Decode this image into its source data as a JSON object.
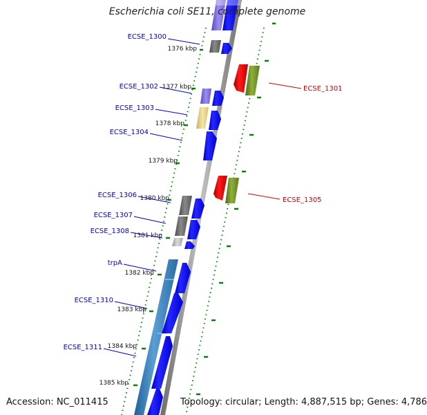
{
  "title": "Escherichia coli SE11, complete genome",
  "footer": {
    "accession": "Accession: NC_011415",
    "summary": "Topology: circular; Length: 4,887,515 bp; Genes: 4,786"
  },
  "colors": {
    "forward_gene": "#0000f0",
    "reverse_gene": "#e00000",
    "reverse_gene_secondary": "#6e8e22",
    "gene_dark": "#676767",
    "gene_light": "#a9a9a9",
    "operon": "#3a7fb9",
    "ticks": "#0b7d0b",
    "axis": "#8a8a8a",
    "forward_label": "#0000c8",
    "reverse_label": "#d00000"
  },
  "kbp_ticks": [
    "1376 kbp",
    "1377 kbp",
    "1378 kbp",
    "1379 kbp",
    "1380 kbp",
    "1381 kbp",
    "1382 kbp",
    "1383 kbp",
    "1384 kbp",
    "1385 kbp"
  ],
  "forward_genes": [
    "ECSE_1300",
    "ECSE_1302",
    "ECSE_1303",
    "ECSE_1304",
    "ECSE_1306",
    "ECSE_1307",
    "ECSE_1308",
    "trpA",
    "ECSE_1310",
    "ECSE_1311"
  ],
  "reverse_genes": [
    "ECSE_1301",
    "ECSE_1305"
  ]
}
